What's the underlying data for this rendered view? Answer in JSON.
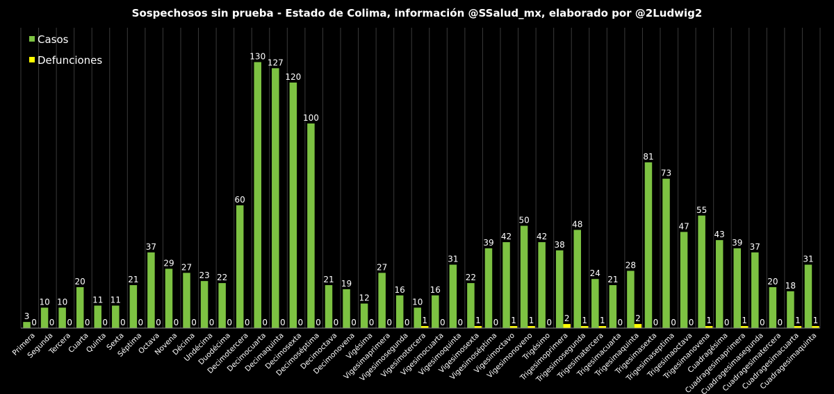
{
  "chart_data": {
    "type": "bar",
    "title": "Sospechosos sin prueba - Estado de Colima, información @SSalud_mx, elaborado por @2Ludwig2",
    "xlabel": "",
    "ylabel": "",
    "ylim": [
      0,
      140
    ],
    "grid": "vertical",
    "legend_position": "top-left",
    "categories": [
      "Primera",
      "Segunda",
      "Tercera",
      "Cuarta",
      "Quinta",
      "Sexta",
      "Séptima",
      "Octava",
      "Novena",
      "Décima",
      "Undécima",
      "Duodécima",
      "Decimotercera",
      "Decimocuarta",
      "Decimaquinta",
      "Decimosexta",
      "Decimoséptima",
      "Decimoctava",
      "Decimonovena",
      "Vigésima",
      "Vigesimaprimera",
      "Vigesimosegunda",
      "Vigesimotercera",
      "Vigesimocuarta",
      "Vigesimoquinta",
      "Vigesimosexta",
      "Vigesimoséptima",
      "Vigesimoctavo",
      "Vigesimonoveno",
      "Trigésimo",
      "Trigesimoprimera",
      "Trigesimosegunda",
      "Trigesimatercera",
      "Trigesimacuarta",
      "Trigesimaquinta",
      "Trigesimasexta",
      "Trigesimaseptima",
      "Trigesimaoctava",
      "Trigesimanovena",
      "Cuadragésima",
      "Cuadragesimaprimera",
      "Cuadragesimasegunda",
      "Cuadragesimatercera",
      "Cuadragesimacuarta",
      "Cuadragesimaquinta"
    ],
    "series": [
      {
        "name": "Casos",
        "color": "#7dc242",
        "values": [
          3,
          10,
          10,
          20,
          11,
          11,
          21,
          37,
          29,
          27,
          23,
          22,
          60,
          130,
          127,
          120,
          100,
          21,
          19,
          12,
          27,
          16,
          10,
          16,
          31,
          22,
          39,
          42,
          50,
          42,
          38,
          48,
          24,
          21,
          28,
          81,
          73,
          47,
          55,
          43,
          39,
          37,
          20,
          18,
          31
        ]
      },
      {
        "name": "Defunciones",
        "color": "#ffff00",
        "values": [
          0,
          0,
          0,
          0,
          0,
          0,
          0,
          0,
          0,
          0,
          0,
          0,
          0,
          0,
          0,
          0,
          0,
          0,
          0,
          0,
          0,
          0,
          1,
          0,
          0,
          1,
          0,
          1,
          1,
          0,
          2,
          1,
          1,
          0,
          2,
          0,
          0,
          0,
          1,
          0,
          1,
          0,
          0,
          1,
          1
        ]
      }
    ]
  }
}
